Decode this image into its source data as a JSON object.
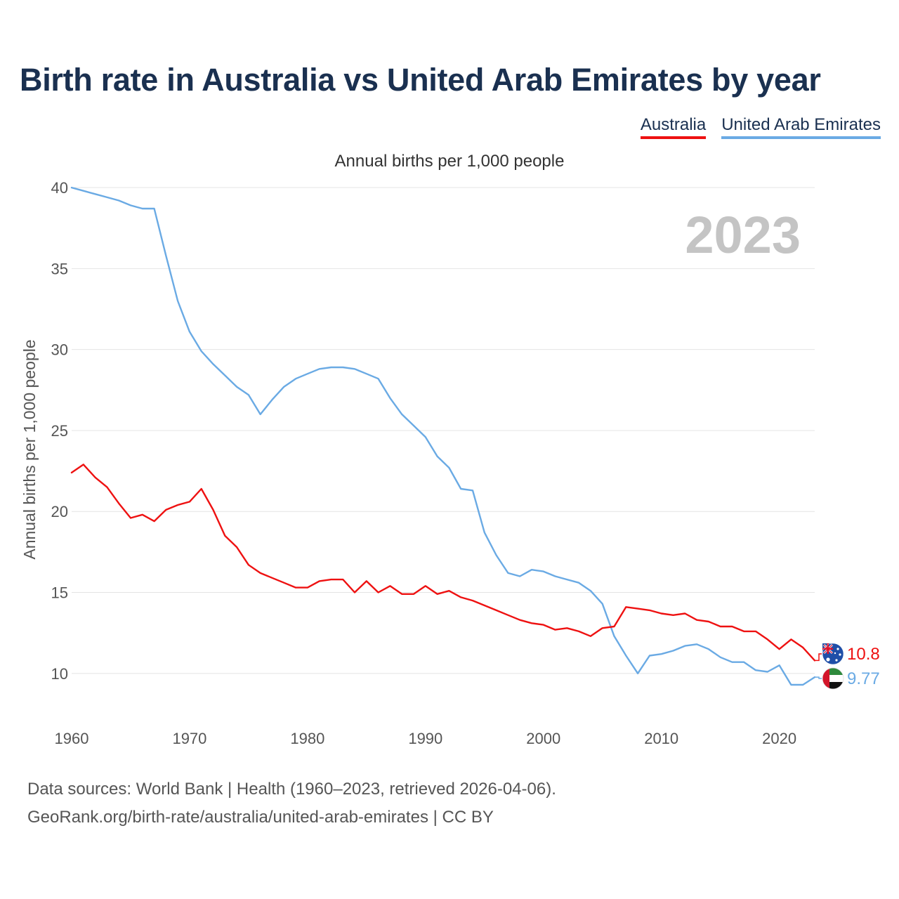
{
  "header": {
    "title": "Birth rate in Australia vs United Arab Emirates by year"
  },
  "legend": {
    "items": [
      {
        "label": "Australia",
        "color": "#ee1111"
      },
      {
        "label": "United Arab Emirates",
        "color": "#6aaae4"
      }
    ]
  },
  "footer": {
    "source_line1": "Data sources: World Bank | Health (1960–2023, retrieved 2026-04-06).",
    "source_line2": "GeoRank.org/birth-rate/australia/united-arab-emirates | CC BY"
  },
  "chart_data": {
    "type": "line",
    "title": "Birth rate in Australia vs United Arab Emirates by year",
    "subtitle": "Annual births per 1,000 people",
    "ylabel": "Annual births per 1,000 people",
    "xlabel": "",
    "year_label": "2023",
    "xlim": [
      1960,
      2023
    ],
    "ylim": [
      7,
      41
    ],
    "x_ticks": [
      1960,
      1970,
      1980,
      1990,
      2000,
      2010,
      2020
    ],
    "y_ticks": [
      10,
      15,
      20,
      25,
      30,
      35,
      40
    ],
    "grid": true,
    "legend_position": "top-right",
    "x": [
      1960,
      1961,
      1962,
      1963,
      1964,
      1965,
      1966,
      1967,
      1968,
      1969,
      1970,
      1971,
      1972,
      1973,
      1974,
      1975,
      1976,
      1977,
      1978,
      1979,
      1980,
      1981,
      1982,
      1983,
      1984,
      1985,
      1986,
      1987,
      1988,
      1989,
      1990,
      1991,
      1992,
      1993,
      1994,
      1995,
      1996,
      1997,
      1998,
      1999,
      2000,
      2001,
      2002,
      2003,
      2004,
      2005,
      2006,
      2007,
      2008,
      2009,
      2010,
      2011,
      2012,
      2013,
      2014,
      2015,
      2016,
      2017,
      2018,
      2019,
      2020,
      2021,
      2022,
      2023
    ],
    "series": [
      {
        "name": "Australia",
        "color": "#ee1111",
        "end_label": "10.8",
        "values": [
          22.4,
          22.9,
          22.1,
          21.5,
          20.5,
          19.6,
          19.8,
          19.4,
          20.1,
          20.4,
          20.6,
          21.4,
          20.1,
          18.5,
          17.8,
          16.7,
          16.2,
          15.9,
          15.6,
          15.3,
          15.3,
          15.7,
          15.8,
          15.8,
          15.0,
          15.7,
          15.0,
          15.4,
          14.9,
          14.9,
          15.4,
          14.9,
          15.1,
          14.7,
          14.5,
          14.2,
          13.9,
          13.6,
          13.3,
          13.1,
          13.0,
          12.7,
          12.8,
          12.6,
          12.3,
          12.8,
          12.9,
          14.1,
          14.0,
          13.9,
          13.7,
          13.6,
          13.7,
          13.3,
          13.2,
          12.9,
          12.9,
          12.6,
          12.6,
          12.1,
          11.5,
          12.1,
          11.6,
          10.8
        ]
      },
      {
        "name": "United Arab Emirates",
        "color": "#6aaae4",
        "end_label": "9.77",
        "values": [
          40.0,
          39.8,
          39.6,
          39.4,
          39.2,
          38.9,
          38.7,
          38.7,
          35.8,
          33.0,
          31.1,
          29.9,
          29.1,
          28.4,
          27.7,
          27.2,
          26.0,
          26.9,
          27.7,
          28.2,
          28.5,
          28.8,
          28.9,
          28.9,
          28.8,
          28.5,
          28.2,
          27.0,
          26.0,
          25.3,
          24.6,
          23.4,
          22.7,
          21.4,
          21.3,
          18.7,
          17.3,
          16.2,
          16.0,
          16.4,
          16.3,
          16.0,
          15.8,
          15.6,
          15.1,
          14.3,
          12.3,
          11.1,
          10.0,
          11.1,
          11.2,
          11.4,
          11.7,
          11.8,
          11.5,
          11.0,
          10.7,
          10.7,
          10.2,
          10.1,
          10.5,
          9.3,
          9.3,
          9.77
        ]
      }
    ]
  }
}
